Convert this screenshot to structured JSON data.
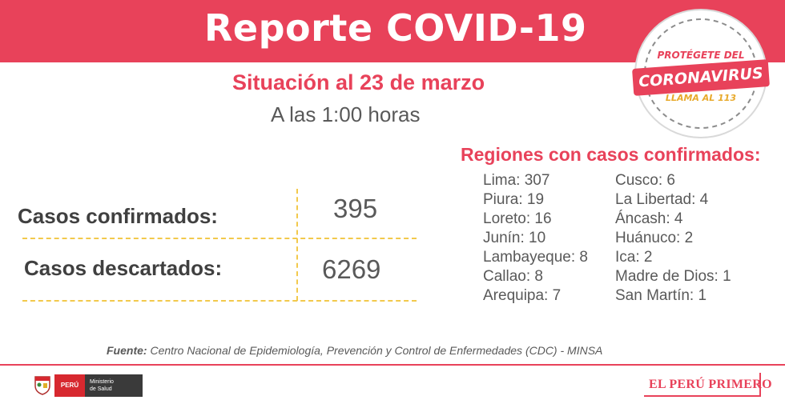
{
  "header": {
    "title": "Reporte COVID-19"
  },
  "badge": {
    "top": "PROTÉGETE DEL",
    "main": "CORONAVIRUS",
    "bottom": "LLAMA AL 113"
  },
  "situacion": "Situación al 23 de marzo",
  "hora": "A las 1:00 horas",
  "stats": {
    "confirmados_label": "Casos confirmados:",
    "confirmados_value": "395",
    "descartados_label": "Casos descartados:",
    "descartados_value": "6269"
  },
  "regiones": {
    "title": "Regiones con casos confirmados:",
    "col1": [
      "Lima: 307",
      "Piura: 19",
      "Loreto: 16",
      "Junín: 10",
      "Lambayeque: 8",
      "Callao: 8",
      "Arequipa: 7"
    ],
    "col2": [
      "Cusco: 6",
      "La Libertad: 4",
      "Áncash: 4",
      "Huánuco: 2",
      "Ica: 2",
      "Madre de Dios: 1",
      "San Martín: 1"
    ]
  },
  "fuente": {
    "label": "Fuente:",
    "text": " Centro Nacional de Epidemiología, Prevención y Control de Enfermedades (CDC) - MINSA"
  },
  "footer": {
    "peru": "PERÚ",
    "ministerio_line1": "Ministerio",
    "ministerio_line2": "de Salud",
    "brand": "EL PERÚ PRIMERO"
  },
  "colors": {
    "accent": "#e8425a",
    "dash": "#f2c94c",
    "badge_yellow": "#e8a92a"
  }
}
